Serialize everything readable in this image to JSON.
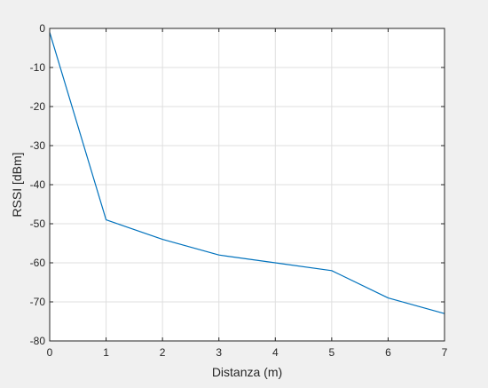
{
  "chart_data": {
    "type": "line",
    "xlabel": "Distanza (m)",
    "ylabel": "RSSI [dBm]",
    "xlim": [
      0,
      7
    ],
    "ylim": [
      -80,
      0
    ],
    "xticks": [
      0,
      1,
      2,
      3,
      4,
      5,
      6,
      7
    ],
    "yticks": [
      0,
      -10,
      -20,
      -30,
      -40,
      -50,
      -60,
      -70,
      -80
    ],
    "grid": true,
    "series": [
      {
        "color": "#0072bd",
        "x": [
          0,
          1,
          2,
          3,
          4,
          5,
          6,
          7
        ],
        "y": [
          -1,
          -49,
          -54,
          -58,
          -60,
          -62,
          -69,
          -73
        ]
      }
    ]
  },
  "colors": {
    "figure_background": "#f0f0f0",
    "axes_background": "#ffffff",
    "grid": "#dfdfdf",
    "axis": "#262626"
  }
}
